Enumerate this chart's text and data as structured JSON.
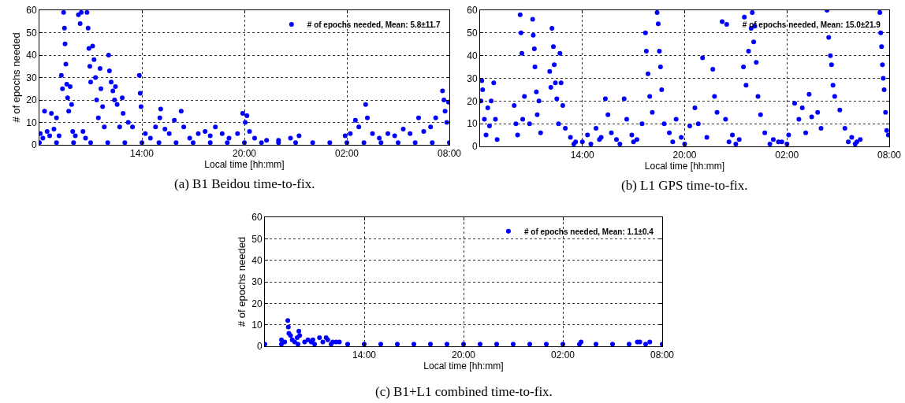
{
  "chart_data": [
    {
      "type": "scatter",
      "xlabel": "Local time [hh:mm]",
      "ylabel": "# of epochs needed",
      "annotations": [
        "(a) B1 Beidou time-to-fix."
      ],
      "xlim": [
        "--01-01T08:00",
        "--01-02T08:00"
      ],
      "xticks": [
        {
          "value": "--01-01T14:00",
          "label": "14:00"
        },
        {
          "value": "--01-01T20:00",
          "label": "20:00"
        },
        {
          "value": "--01-02T02:00",
          "label": "02:00"
        },
        {
          "value": "--01-02T08:00",
          "label": "08:00"
        }
      ],
      "ylim": [
        0,
        60
      ],
      "yticks": [
        0,
        10,
        20,
        30,
        40,
        50,
        60
      ],
      "grid": true,
      "legend": "top right",
      "marker": "circle",
      "series": [
        {
          "name": "# of epochs needed, Mean: 5.8±11.7",
          "color": "#0000ff",
          "x": [
            "--01-01T08:03",
            "--01-01T08:12",
            "--01-01T08:18",
            "--01-01T08:27",
            "--01-01T08:36",
            "--01-01T08:42",
            "--01-01T08:51",
            "--01-01T09:00",
            "--01-01T09:09",
            "--01-01T09:17",
            "--01-01T09:21",
            "--01-01T09:25",
            "--01-01T09:28",
            "--01-01T09:30",
            "--01-01T09:33",
            "--01-01T09:36",
            "--01-01T09:39",
            "--01-01T09:43",
            "--01-01T09:48",
            "--01-01T09:53",
            "--01-01T09:57",
            "--01-01T10:06",
            "--01-01T10:17",
            "--01-01T10:23",
            "--01-01T10:27",
            "--01-01T10:33",
            "--01-01T10:42",
            "--01-01T10:47",
            "--01-01T10:51",
            "--01-01T10:54",
            "--01-01T10:57",
            "--01-01T11:00",
            "--01-01T11:07",
            "--01-01T11:12",
            "--01-01T11:17",
            "--01-01T11:21",
            "--01-01T11:27",
            "--01-01T11:33",
            "--01-01T11:36",
            "--01-01T11:42",
            "--01-01T11:48",
            "--01-01T12:03",
            "--01-01T12:06",
            "--01-01T12:12",
            "--01-01T12:18",
            "--01-01T12:24",
            "--01-01T12:27",
            "--01-01T12:33",
            "--01-01T12:42",
            "--01-01T12:51",
            "--01-01T12:54",
            "--01-01T13:12",
            "--01-01T13:27",
            "--01-01T13:51",
            "--01-01T13:54",
            "--01-01T13:57",
            "--01-01T14:12",
            "--01-01T14:30",
            "--01-01T14:48",
            "--01-01T15:03",
            "--01-01T15:06",
            "--01-01T15:21",
            "--01-01T15:36",
            "--01-01T15:54",
            "--01-01T16:18",
            "--01-01T16:27",
            "--01-01T16:48",
            "--01-01T17:18",
            "--01-01T17:42",
            "--01-01T18:00",
            "--01-01T18:18",
            "--01-01T18:42",
            "--01-01T19:06",
            "--01-01T19:36",
            "--01-01T19:54",
            "--01-01T20:03",
            "--01-01T20:09",
            "--01-01T20:18",
            "--01-01T20:36",
            "--01-01T21:18",
            "--01-01T22:00",
            "--01-01T22:42",
            "--01-01T23:12",
            "--01-02T01:54",
            "--01-02T02:12",
            "--01-02T02:30",
            "--01-02T02:42",
            "--01-02T03:06",
            "--01-02T03:12",
            "--01-02T03:30",
            "--01-02T03:54",
            "--01-02T04:24",
            "--01-02T04:48",
            "--01-02T05:18",
            "--01-02T05:42",
            "--01-02T06:12",
            "--01-02T06:30",
            "--01-02T06:54",
            "--01-02T07:12",
            "--01-02T07:36",
            "--01-02T07:41",
            "--01-02T07:45",
            "--01-02T07:51",
            "--01-02T07:57",
            "--01-01T08:00",
            "--01-01T09:00",
            "--01-01T10:00",
            "--01-01T11:00",
            "--01-01T12:00",
            "--01-01T13:00",
            "--01-01T14:00",
            "--01-01T15:00",
            "--01-01T16:00",
            "--01-01T17:00",
            "--01-01T18:00",
            "--01-01T19:00",
            "--01-01T20:00",
            "--01-01T21:00",
            "--01-01T22:00",
            "--01-01T23:00",
            "--01-02T00:00",
            "--01-02T01:00",
            "--01-02T02:00",
            "--01-02T03:00",
            "--01-02T04:00",
            "--01-02T05:00",
            "--01-02T06:00",
            "--01-02T07:00",
            "--01-02T08:00"
          ],
          "values": [
            5,
            3,
            15,
            6,
            4,
            14,
            7,
            12,
            4,
            31,
            25,
            59,
            52,
            45,
            36,
            27,
            21,
            15,
            26,
            18,
            6,
            4,
            58,
            54,
            59,
            6,
            3,
            59,
            52,
            43,
            35,
            28,
            44,
            38,
            30,
            20,
            12,
            34,
            25,
            17,
            8,
            40,
            33,
            28,
            24,
            20,
            26,
            18,
            8,
            21,
            14,
            10,
            8,
            31,
            23,
            17,
            5,
            3,
            8,
            12,
            16,
            7,
            5,
            11,
            15,
            8,
            3,
            5,
            6,
            4,
            8,
            5,
            3,
            5,
            14,
            10,
            13,
            6,
            3,
            2,
            2,
            3,
            4,
            4,
            5,
            11,
            8,
            18,
            12,
            5,
            3,
            5,
            4,
            7,
            5,
            12,
            6,
            8,
            12,
            24,
            20,
            15,
            10,
            19,
            1,
            1,
            1,
            1,
            1,
            1,
            1,
            1,
            1,
            1,
            1,
            1,
            1,
            1,
            1,
            1,
            1,
            1,
            1,
            1,
            1,
            1,
            1,
            1,
            1
          ]
        }
      ]
    },
    {
      "type": "scatter",
      "xlabel": "Local time [hh:mm]",
      "annotations": [
        "(b) L1 GPS time-to-fix."
      ],
      "xlim": [
        "--01-01T08:00",
        "--01-02T08:00"
      ],
      "xticks": [
        {
          "value": "--01-01T14:00",
          "label": "14:00"
        },
        {
          "value": "--01-01T20:00",
          "label": "20:00"
        },
        {
          "value": "--01-02T02:00",
          "label": "02:00"
        },
        {
          "value": "--01-02T08:00",
          "label": "08:00"
        }
      ],
      "ylim": [
        0,
        60
      ],
      "yticks": [
        0,
        10,
        20,
        30,
        40,
        50,
        60
      ],
      "grid": true,
      "legend": "top right",
      "marker": "circle",
      "series": [
        {
          "name": "# of epochs needed, Mean: 15.0±21.9",
          "color": "#0000ff",
          "x": [
            "--01-01T08:03",
            "--01-01T08:06",
            "--01-01T08:09",
            "--01-01T08:15",
            "--01-01T08:21",
            "--01-01T08:27",
            "--01-01T08:33",
            "--01-01T08:39",
            "--01-01T08:48",
            "--01-01T08:54",
            "--01-01T09:00",
            "--01-01T10:00",
            "--01-01T10:06",
            "--01-01T10:12",
            "--01-01T10:21",
            "--01-01T10:24",
            "--01-01T10:27",
            "--01-01T10:30",
            "--01-01T10:36",
            "--01-01T10:54",
            "--01-01T11:05",
            "--01-01T11:07",
            "--01-01T11:11",
            "--01-01T11:13",
            "--01-01T11:18",
            "--01-01T11:21",
            "--01-01T11:27",
            "--01-01T11:33",
            "--01-01T12:05",
            "--01-01T12:09",
            "--01-01T12:13",
            "--01-01T12:18",
            "--01-01T12:21",
            "--01-01T12:25",
            "--01-01T12:30",
            "--01-01T12:36",
            "--01-01T12:41",
            "--01-01T12:45",
            "--01-01T12:51",
            "--01-01T13:00",
            "--01-01T13:18",
            "--01-01T13:36",
            "--01-01T14:18",
            "--01-01T14:48",
            "--01-01T15:06",
            "--01-01T15:21",
            "--01-01T15:30",
            "--01-01T15:42",
            "--01-01T16:00",
            "--01-01T16:27",
            "--01-01T16:36",
            "--01-01T16:54",
            "--01-01T17:12",
            "--01-01T17:30",
            "--01-01T17:42",
            "--01-01T17:45",
            "--01-01T17:51",
            "--01-01T17:57",
            "--01-01T18:06",
            "--01-01T18:23",
            "--01-01T18:27",
            "--01-01T18:31",
            "--01-01T18:35",
            "--01-01T18:39",
            "--01-01T18:48",
            "--01-01T19:06",
            "--01-01T19:30",
            "--01-01T19:48",
            "--01-01T20:18",
            "--01-01T20:36",
            "--01-01T20:48",
            "--01-01T21:03",
            "--01-01T21:18",
            "--01-01T21:39",
            "--01-01T21:45",
            "--01-01T21:54",
            "--01-01T22:12",
            "--01-01T22:24",
            "--01-01T22:48",
            "--01-01T23:12",
            "--01-01T23:27",
            "--01-01T23:30",
            "--01-01T23:36",
            "--01-01T23:45",
            "--01-01T23:54",
            "--01-01T23:58",
            "--01-02T00:03",
            "--01-02T00:07",
            "--01-02T00:12",
            "--01-02T00:18",
            "--01-02T00:27",
            "--01-02T00:42",
            "--01-02T01:12",
            "--01-02T01:42",
            "--01-02T02:06",
            "--01-02T02:27",
            "--01-02T02:42",
            "--01-02T02:54",
            "--01-02T03:06",
            "--01-02T03:18",
            "--01-02T03:27",
            "--01-02T03:48",
            "--01-02T04:00",
            "--01-02T04:21",
            "--01-02T04:27",
            "--01-02T04:33",
            "--01-02T04:37",
            "--01-02T04:42",
            "--01-02T04:48",
            "--01-02T05:06",
            "--01-02T05:24",
            "--01-02T05:48",
            "--01-02T06:06",
            "--01-02T07:27",
            "--01-02T07:30",
            "--01-02T07:33",
            "--01-02T07:36",
            "--01-02T07:39",
            "--01-02T07:42",
            "--01-02T07:47",
            "--01-02T07:51",
            "--01-02T07:57",
            "--01-01T13:30",
            "--01-01T14:00",
            "--01-01T14:30",
            "--01-01T15:00",
            "--01-01T16:12",
            "--01-01T17:00",
            "--01-01T19:18",
            "--01-01T20:00",
            "--01-01T22:36",
            "--01-01T23:00",
            "--01-02T01:00",
            "--01-02T01:30",
            "--01-02T02:00",
            "--01-02T05:36",
            "--01-02T06:00",
            "--01-02T06:18"
          ],
          "values": [
            20,
            29,
            25,
            12,
            5,
            17,
            9,
            20,
            28,
            12,
            3,
            18,
            10,
            5,
            58,
            50,
            41,
            12,
            22,
            10,
            56,
            49,
            43,
            35,
            24,
            14,
            20,
            6,
            33,
            26,
            52,
            44,
            36,
            28,
            21,
            10,
            41,
            28,
            18,
            8,
            4,
            2,
            5,
            8,
            4,
            21,
            14,
            6,
            3,
            21,
            12,
            5,
            3,
            10,
            50,
            42,
            32,
            22,
            15,
            59,
            54,
            42,
            35,
            25,
            10,
            6,
            12,
            4,
            9,
            17,
            10,
            39,
            4,
            34,
            22,
            15,
            55,
            12,
            5,
            3,
            35,
            57,
            27,
            42,
            52,
            59,
            46,
            53,
            37,
            22,
            14,
            6,
            3,
            2,
            5,
            19,
            12,
            17,
            6,
            23,
            13,
            15,
            8,
            60,
            48,
            40,
            36,
            27,
            22,
            16,
            8,
            4,
            2,
            59,
            50,
            44,
            36,
            30,
            25,
            15,
            7,
            5,
            1,
            2,
            1,
            3,
            1,
            2,
            2,
            1,
            2,
            1,
            1,
            2,
            1,
            2,
            1,
            3
          ]
        }
      ]
    },
    {
      "type": "scatter",
      "xlabel": "Local time [hh:mm]",
      "ylabel": "# of epochs needed",
      "annotations": [
        "(c) B1+L1 combined time-to-fix."
      ],
      "xlim": [
        "--01-01T08:00",
        "--01-02T08:00"
      ],
      "xticks": [
        {
          "value": "--01-01T14:00",
          "label": "14:00"
        },
        {
          "value": "--01-01T20:00",
          "label": "20:00"
        },
        {
          "value": "--01-02T02:00",
          "label": "02:00"
        },
        {
          "value": "--01-02T08:00",
          "label": "08:00"
        }
      ],
      "ylim": [
        0,
        60
      ],
      "yticks": [
        0,
        10,
        20,
        30,
        40,
        50,
        60
      ],
      "grid": true,
      "legend": "top right",
      "marker": "circle",
      "series": [
        {
          "name": "# of epochs needed, Mean: 1.1±0.4",
          "color": "#0000ff",
          "x": [
            "--01-01T09:00",
            "--01-01T09:12",
            "--01-01T09:23",
            "--01-01T09:25",
            "--01-01T09:27",
            "--01-01T09:33",
            "--01-01T09:39",
            "--01-01T09:48",
            "--01-01T09:57",
            "--01-01T10:03",
            "--01-01T10:06",
            "--01-01T10:24",
            "--01-01T10:36",
            "--01-01T10:48",
            "--01-01T10:54",
            "--01-01T11:18",
            "--01-01T11:30",
            "--01-01T11:42",
            "--01-01T11:48",
            "--01-01T12:06",
            "--01-01T12:18",
            "--01-01T12:30",
            "--01-02T03:06",
            "--01-02T06:30",
            "--01-02T06:39",
            "--01-02T07:15",
            "--01-01T08:00",
            "--01-01T09:00",
            "--01-01T10:00",
            "--01-01T11:00",
            "--01-01T12:00",
            "--01-01T13:00",
            "--01-01T14:00",
            "--01-01T15:00",
            "--01-01T16:00",
            "--01-01T17:00",
            "--01-01T18:00",
            "--01-01T19:00",
            "--01-01T20:00",
            "--01-01T21:00",
            "--01-01T22:00",
            "--01-01T23:00",
            "--01-02T00:00",
            "--01-02T01:00",
            "--01-02T02:00",
            "--01-02T03:00",
            "--01-02T04:00",
            "--01-02T05:00",
            "--01-02T06:00",
            "--01-02T07:00",
            "--01-02T08:00"
          ],
          "values": [
            3,
            2,
            12,
            9,
            6,
            5,
            3,
            2,
            4,
            7,
            5,
            2,
            3,
            2,
            3,
            4,
            2,
            4,
            3,
            2,
            2,
            2,
            2,
            2,
            2,
            2,
            1,
            1,
            1,
            1,
            1,
            1,
            1,
            1,
            1,
            1,
            1,
            1,
            1,
            1,
            1,
            1,
            1,
            1,
            1,
            1,
            1,
            1,
            1,
            1,
            1
          ]
        }
      ]
    }
  ]
}
